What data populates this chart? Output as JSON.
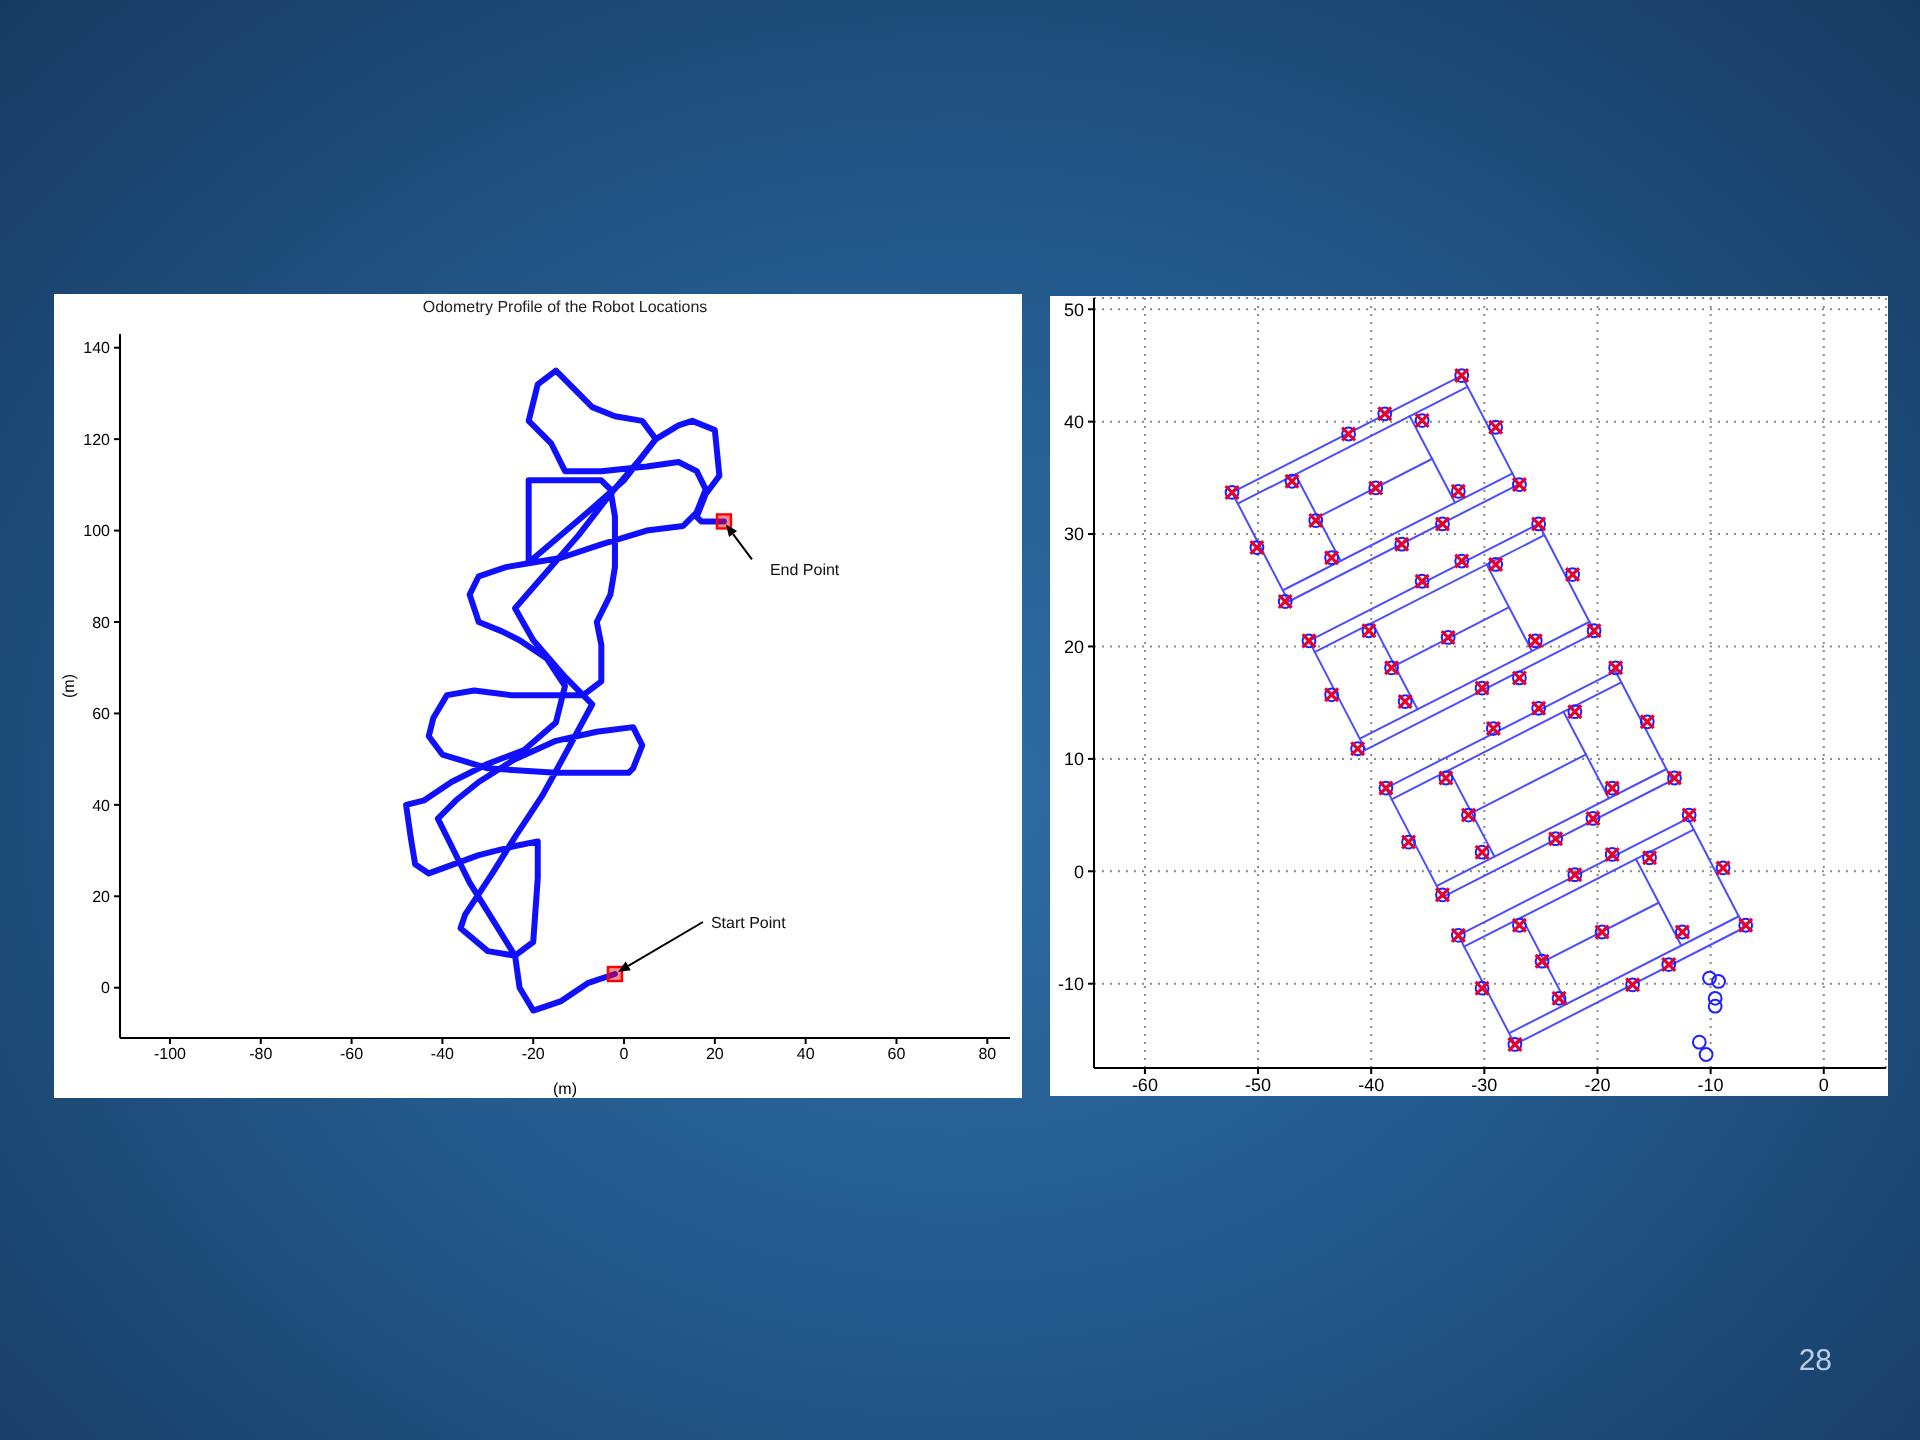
{
  "chart_data": [
    {
      "type": "line",
      "title": "Odometry Profile of the Robot Locations",
      "xlabel": "(m)",
      "ylabel": "(m)",
      "xlim": [
        -111,
        85
      ],
      "ylim": [
        -11,
        143
      ],
      "xticks": [
        -100,
        -80,
        -60,
        -40,
        -20,
        0,
        20,
        40,
        60,
        80
      ],
      "yticks": [
        0,
        20,
        40,
        60,
        80,
        100,
        120,
        140
      ],
      "series": [
        {
          "color": "#1010ff",
          "x": [
            -2,
            -8,
            -14,
            -20,
            -23,
            -24,
            -29,
            -34,
            -38,
            -41,
            -37,
            -32,
            -24,
            -15,
            -6,
            2,
            4,
            2,
            1,
            -15,
            -30,
            -40,
            -43,
            -42,
            -39,
            -33,
            -25,
            -16,
            -9,
            -5,
            -5,
            -6,
            -3,
            -2,
            -2,
            -3,
            -5,
            -13,
            -21,
            -21,
            -21,
            -8,
            0,
            7,
            4,
            -2,
            -7,
            -11,
            -15,
            -19,
            -21,
            -16,
            -13,
            -5,
            5,
            12,
            16,
            18,
            16,
            13,
            5,
            -5,
            -14,
            -20,
            -26,
            -32,
            -34,
            -32,
            -27,
            -23,
            -17,
            -13,
            -15,
            -22,
            -30,
            -38,
            -44,
            -48,
            -47,
            -46,
            -43,
            -32,
            -24,
            -19,
            -19,
            -20,
            -24,
            -30,
            -36,
            -35,
            -29,
            -24,
            -18,
            -13,
            -7,
            -13,
            -20,
            -24,
            -17,
            -10,
            -3,
            3,
            7,
            12,
            15,
            20,
            21,
            18,
            16,
            17,
            22
          ],
          "values": [
            3,
            1,
            -3,
            -5,
            0,
            7,
            15,
            23,
            31,
            37,
            41,
            45,
            50,
            54,
            56,
            57,
            53,
            48,
            47,
            47,
            48,
            51,
            55,
            59,
            64,
            65,
            64,
            64,
            64,
            67,
            75,
            80,
            86,
            92,
            103,
            109,
            111,
            111,
            111,
            102,
            93,
            104,
            111,
            120,
            124,
            125,
            127,
            131,
            135,
            132,
            124,
            119,
            113,
            113,
            114,
            115,
            113,
            109,
            104,
            101,
            100,
            97,
            94,
            93,
            92,
            90,
            86,
            80,
            78,
            76,
            72,
            66,
            58,
            52,
            49,
            45,
            41,
            40,
            33,
            27,
            25,
            29,
            31,
            32,
            24,
            10,
            7,
            8,
            13,
            16,
            25,
            33,
            42,
            51,
            62,
            68,
            76,
            83,
            91,
            99,
            108,
            115,
            120,
            123,
            124,
            122,
            112,
            108,
            103,
            102,
            102
          ]
        },
        {
          "type": "scatter",
          "color": "#ff0000",
          "marker": "square",
          "x": [
            -2,
            22
          ],
          "values": [
            3,
            102
          ]
        }
      ],
      "annotations": [
        {
          "text": "Start Point",
          "x": -2,
          "y": 3
        },
        {
          "text": "End Point",
          "x": 22,
          "y": 102
        }
      ]
    },
    {
      "type": "scatter",
      "xlim": [
        -64.5,
        5.5
      ],
      "ylim": [
        -17.5,
        51
      ],
      "xticks": [
        -60,
        -50,
        -40,
        -30,
        -20,
        -10,
        0
      ],
      "yticks": [
        -10,
        0,
        10,
        20,
        30,
        40,
        50
      ],
      "grid": true,
      "series": [
        {
          "type": "line",
          "color": "#4d4dff",
          "x": [
            -52.3,
            -32,
            -27
          ],
          "values": [
            33.7,
            44.1,
            34.4
          ]
        },
        {
          "type": "line",
          "color": "#4d4dff",
          "x": [
            -52.3,
            -47.3,
            -27
          ],
          "values": [
            33.7,
            24,
            34.4
          ]
        },
        {
          "type": "line",
          "color": "#4d4dff",
          "x": [
            -51.8,
            -31.5
          ],
          "values": [
            32.7,
            43.1
          ]
        },
        {
          "type": "line",
          "color": "#4d4dff",
          "x": [
            -47.8,
            -27.5
          ],
          "values": [
            25,
            35.4
          ]
        },
        {
          "type": "line",
          "color": "#4d4dff",
          "x": [
            -44.7,
            -34.6
          ],
          "values": [
            31.5,
            36.7
          ]
        },
        {
          "type": "line",
          "color": "#4d4dff",
          "x": [
            -46.7,
            -42.7
          ],
          "values": [
            35.3,
            27.6
          ]
        },
        {
          "type": "line",
          "color": "#4d4dff",
          "x": [
            -36.6,
            -32.6
          ],
          "values": [
            40.5,
            32.8
          ]
        },
        {
          "type": "line",
          "color": "#4d4dff",
          "x": [
            -45.5,
            -25.2,
            -20.2
          ],
          "values": [
            20.5,
            30.9,
            21.2
          ]
        },
        {
          "type": "line",
          "color": "#4d4dff",
          "x": [
            -45.5,
            -40.5,
            -20.2
          ],
          "values": [
            20.5,
            10.8,
            21.2
          ]
        },
        {
          "type": "line",
          "color": "#4d4dff",
          "x": [
            -45,
            -24.7
          ],
          "values": [
            19.5,
            29.9
          ]
        },
        {
          "type": "line",
          "color": "#4d4dff",
          "x": [
            -41,
            -20.7
          ],
          "values": [
            11.8,
            22.2
          ]
        },
        {
          "type": "line",
          "color": "#4d4dff",
          "x": [
            -37.9,
            -27.8
          ],
          "values": [
            18.3,
            23.5
          ]
        },
        {
          "type": "line",
          "color": "#4d4dff",
          "x": [
            -39.9,
            -35.9
          ],
          "values": [
            22.1,
            14.4
          ]
        },
        {
          "type": "line",
          "color": "#4d4dff",
          "x": [
            -29.8,
            -25.8
          ],
          "values": [
            27.3,
            19.6
          ]
        },
        {
          "type": "line",
          "color": "#4d4dff",
          "x": [
            -38.7,
            -18.4,
            -13.4
          ],
          "values": [
            7.4,
            17.8,
            8.1
          ]
        },
        {
          "type": "line",
          "color": "#4d4dff",
          "x": [
            -38.7,
            -33.7,
            -13.4
          ],
          "values": [
            7.4,
            -2.3,
            8.1
          ]
        },
        {
          "type": "line",
          "color": "#4d4dff",
          "x": [
            -38.2,
            -17.9
          ],
          "values": [
            6.4,
            16.8
          ]
        },
        {
          "type": "line",
          "color": "#4d4dff",
          "x": [
            -34.2,
            -13.9
          ],
          "values": [
            -1.3,
            9.1
          ]
        },
        {
          "type": "line",
          "color": "#4d4dff",
          "x": [
            -31.1,
            -21
          ],
          "values": [
            5.2,
            10.4
          ]
        },
        {
          "type": "line",
          "color": "#4d4dff",
          "x": [
            -33.1,
            -29.1
          ],
          "values": [
            9,
            1.3
          ]
        },
        {
          "type": "line",
          "color": "#4d4dff",
          "x": [
            -23,
            -19
          ],
          "values": [
            14.2,
            6.5
          ]
        },
        {
          "type": "line",
          "color": "#4d4dff",
          "x": [
            -32.3,
            -12,
            -7
          ],
          "values": [
            -5.7,
            4.7,
            -5
          ]
        },
        {
          "type": "line",
          "color": "#4d4dff",
          "x": [
            -32.3,
            -27.3,
            -7
          ],
          "values": [
            -5.7,
            -15.4,
            -5
          ]
        },
        {
          "type": "line",
          "color": "#4d4dff",
          "x": [
            -31.8,
            -11.5
          ],
          "values": [
            -6.7,
            3.7
          ]
        },
        {
          "type": "line",
          "color": "#4d4dff",
          "x": [
            -27.8,
            -7.5
          ],
          "values": [
            -14.4,
            -4
          ]
        },
        {
          "type": "line",
          "color": "#4d4dff",
          "x": [
            -24.7,
            -14.6
          ],
          "values": [
            -8,
            -2.8
          ]
        },
        {
          "type": "line",
          "color": "#4d4dff",
          "x": [
            -26.7,
            -22.7
          ],
          "values": [
            -4.1,
            -11.8
          ]
        },
        {
          "type": "line",
          "color": "#4d4dff",
          "x": [
            -16.6,
            -12.6
          ],
          "values": [
            1.1,
            -6.6
          ]
        },
        {
          "color": "#2020ff",
          "marker": "circle",
          "x": [
            -52.3,
            -50.1,
            -47,
            -44.9,
            -43.5,
            -47.6,
            -42,
            -38.8,
            -35.5,
            -32,
            -29,
            -26.9,
            -32.3,
            -39.6,
            -37.3,
            -33.7,
            -35.5,
            -32,
            -29,
            -25.2,
            -22.2,
            -45.5,
            -40.2,
            -38.2,
            -33.2,
            -25.5,
            -20.3,
            -18.4,
            -43.5,
            -37,
            -30.2,
            -26.9,
            -41.2,
            -38.7,
            -33.4,
            -29.2,
            -25.2,
            -22,
            -15.6,
            -18.7,
            -13.2,
            -20.4,
            -23.7,
            -30.2,
            -31.4,
            -36.7,
            -33.7,
            -22,
            -18.7,
            -15.4,
            -11.9,
            -8.9,
            -6.9,
            -12.5,
            -19.6,
            -24.9,
            -26.9,
            -32.3,
            -30.2,
            -23.4,
            -16.9,
            -13.7,
            -27.3,
            -10.1,
            -9.3,
            -9.6,
            -9.6,
            -11,
            -10.4
          ],
          "values": [
            33.7,
            28.8,
            34.7,
            31.2,
            27.9,
            24,
            38.9,
            40.7,
            40.1,
            44.1,
            39.5,
            34.4,
            33.8,
            34.1,
            29.1,
            30.9,
            25.8,
            27.6,
            27.3,
            30.9,
            26.4,
            20.5,
            21.4,
            18.1,
            20.8,
            20.5,
            21.4,
            18.1,
            15.7,
            15.1,
            16.3,
            17.2,
            10.9,
            7.4,
            8.3,
            12.7,
            14.5,
            14.2,
            13.3,
            7.4,
            8.3,
            4.7,
            2.9,
            1.7,
            5,
            2.6,
            -2.1,
            -0.3,
            1.5,
            1.2,
            5,
            0.3,
            -4.8,
            -5.4,
            -5.4,
            -8,
            -4.8,
            -5.7,
            -10.4,
            -11.3,
            -10.1,
            -8.3,
            -15.4,
            -9.5,
            -9.8,
            -11.3,
            -12,
            -15.2,
            -16.3
          ]
        },
        {
          "color": "#e8002d",
          "marker": "cross",
          "x": [
            -52.3,
            -50.1,
            -47,
            -44.9,
            -43.5,
            -47.6,
            -42,
            -38.8,
            -35.5,
            -32,
            -29,
            -26.9,
            -32.3,
            -39.6,
            -37.3,
            -33.7,
            -35.5,
            -32,
            -29,
            -25.2,
            -22.2,
            -45.5,
            -40.2,
            -38.2,
            -33.2,
            -25.5,
            -20.3,
            -18.4,
            -43.5,
            -37,
            -30.2,
            -26.9,
            -41.2,
            -38.7,
            -33.4,
            -29.2,
            -25.2,
            -22,
            -15.6,
            -18.7,
            -13.2,
            -20.4,
            -23.7,
            -30.2,
            -31.4,
            -36.7,
            -33.7,
            -22,
            -18.7,
            -15.4,
            -11.9,
            -8.9,
            -6.9,
            -12.5,
            -19.6,
            -24.9,
            -26.9,
            -32.3,
            -30.2,
            -23.4,
            -16.9,
            -13.7,
            -27.3
          ],
          "values": [
            33.7,
            28.8,
            34.7,
            31.2,
            27.9,
            24,
            38.9,
            40.7,
            40.1,
            44.1,
            39.5,
            34.4,
            33.8,
            34.1,
            29.1,
            30.9,
            25.8,
            27.6,
            27.3,
            30.9,
            26.4,
            20.5,
            21.4,
            18.1,
            20.8,
            20.5,
            21.4,
            18.1,
            15.7,
            15.1,
            16.3,
            17.2,
            10.9,
            7.4,
            8.3,
            12.7,
            14.5,
            14.2,
            13.3,
            7.4,
            8.3,
            4.7,
            2.9,
            1.7,
            5,
            2.6,
            -2.1,
            -0.3,
            1.5,
            1.2,
            5,
            0.3,
            -4.8,
            -5.4,
            -5.4,
            -8,
            -4.8,
            -5.7,
            -10.4,
            -11.3,
            -10.1,
            -8.3,
            -15.4
          ]
        }
      ],
      "annotations": [
        "28"
      ]
    }
  ]
}
